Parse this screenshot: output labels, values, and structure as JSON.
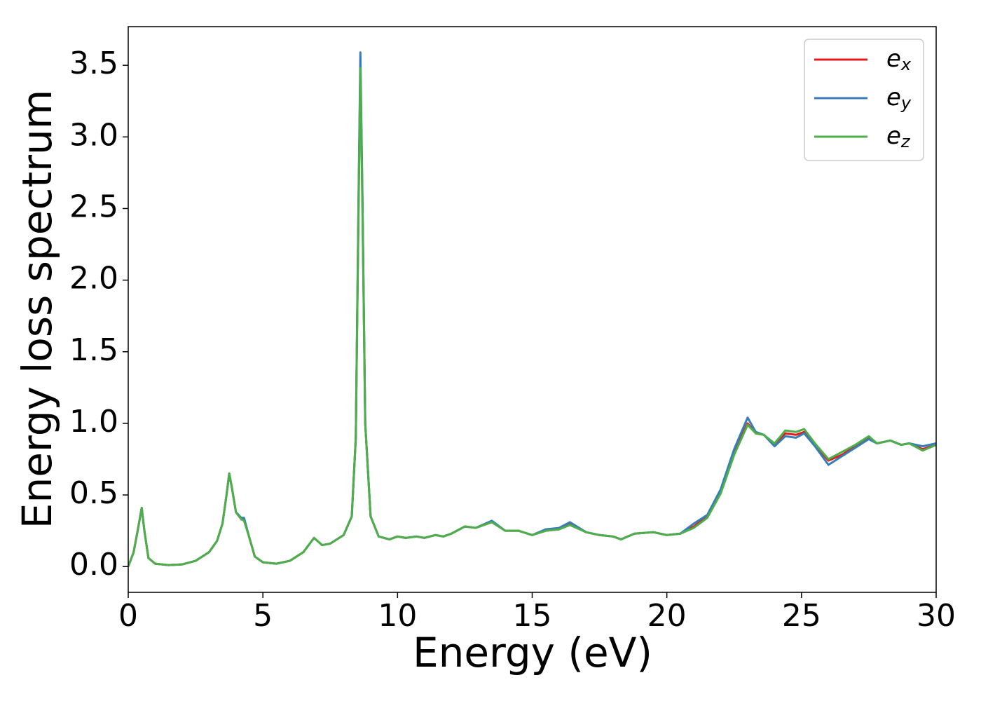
{
  "chart_data": {
    "type": "line",
    "xlabel": "Energy (eV)",
    "ylabel": "Energy loss spectrum",
    "x": [
      0,
      0.2,
      0.35,
      0.5,
      0.6,
      0.75,
      1.0,
      1.5,
      2.0,
      2.5,
      3.0,
      3.3,
      3.5,
      3.65,
      3.75,
      3.85,
      4.0,
      4.2,
      4.3,
      4.5,
      4.7,
      5.0,
      5.5,
      6.0,
      6.5,
      6.9,
      7.2,
      7.5,
      8.0,
      8.3,
      8.45,
      8.55,
      8.62,
      8.7,
      8.8,
      9.0,
      9.3,
      9.7,
      10.0,
      10.3,
      10.7,
      11.0,
      11.4,
      11.7,
      12.0,
      12.5,
      12.9,
      13.5,
      14.0,
      14.5,
      15.0,
      15.5,
      16.0,
      16.4,
      17.0,
      17.5,
      18.0,
      18.3,
      18.8,
      19.5,
      20.0,
      20.5,
      21.0,
      21.5,
      22.0,
      22.5,
      23.0,
      23.3,
      23.6,
      24.0,
      24.4,
      24.8,
      25.1,
      25.5,
      26.0,
      26.5,
      27.0,
      27.5,
      27.8,
      28.3,
      28.7,
      29.0,
      29.5,
      30.0
    ],
    "series": [
      {
        "name": "ex",
        "color": "#e41a1c",
        "values": [
          0.0,
          0.1,
          0.25,
          0.41,
          0.25,
          0.06,
          0.02,
          0.01,
          0.015,
          0.04,
          0.1,
          0.18,
          0.3,
          0.5,
          0.65,
          0.55,
          0.38,
          0.33,
          0.33,
          0.2,
          0.07,
          0.03,
          0.02,
          0.04,
          0.1,
          0.2,
          0.15,
          0.16,
          0.22,
          0.35,
          0.9,
          2.5,
          3.5,
          2.5,
          1.0,
          0.35,
          0.21,
          0.19,
          0.21,
          0.2,
          0.21,
          0.2,
          0.22,
          0.21,
          0.23,
          0.28,
          0.27,
          0.31,
          0.25,
          0.25,
          0.22,
          0.25,
          0.26,
          0.3,
          0.24,
          0.22,
          0.21,
          0.19,
          0.23,
          0.24,
          0.22,
          0.23,
          0.28,
          0.35,
          0.53,
          0.8,
          1.0,
          0.93,
          0.92,
          0.85,
          0.93,
          0.92,
          0.94,
          0.85,
          0.74,
          0.78,
          0.84,
          0.9,
          0.86,
          0.88,
          0.85,
          0.86,
          0.82,
          0.85
        ]
      },
      {
        "name": "ey",
        "color": "#377eb8",
        "values": [
          0.0,
          0.1,
          0.25,
          0.41,
          0.25,
          0.06,
          0.02,
          0.01,
          0.015,
          0.04,
          0.1,
          0.18,
          0.3,
          0.5,
          0.65,
          0.55,
          0.38,
          0.34,
          0.34,
          0.2,
          0.07,
          0.03,
          0.02,
          0.04,
          0.1,
          0.2,
          0.15,
          0.16,
          0.22,
          0.35,
          0.9,
          2.55,
          3.59,
          2.55,
          1.0,
          0.35,
          0.21,
          0.19,
          0.21,
          0.2,
          0.21,
          0.2,
          0.22,
          0.21,
          0.23,
          0.28,
          0.27,
          0.32,
          0.25,
          0.25,
          0.22,
          0.26,
          0.27,
          0.31,
          0.24,
          0.22,
          0.21,
          0.19,
          0.23,
          0.24,
          0.22,
          0.23,
          0.3,
          0.36,
          0.54,
          0.82,
          1.04,
          0.94,
          0.92,
          0.84,
          0.91,
          0.9,
          0.93,
          0.84,
          0.71,
          0.77,
          0.83,
          0.89,
          0.86,
          0.88,
          0.85,
          0.86,
          0.84,
          0.86
        ]
      },
      {
        "name": "ez",
        "color": "#4daf4a",
        "values": [
          0.0,
          0.1,
          0.25,
          0.41,
          0.25,
          0.06,
          0.02,
          0.01,
          0.015,
          0.04,
          0.1,
          0.18,
          0.3,
          0.5,
          0.65,
          0.55,
          0.38,
          0.33,
          0.32,
          0.2,
          0.07,
          0.03,
          0.02,
          0.04,
          0.1,
          0.2,
          0.15,
          0.16,
          0.22,
          0.35,
          0.9,
          2.45,
          3.48,
          2.45,
          1.0,
          0.35,
          0.21,
          0.19,
          0.21,
          0.2,
          0.21,
          0.2,
          0.22,
          0.21,
          0.23,
          0.28,
          0.27,
          0.31,
          0.25,
          0.25,
          0.22,
          0.25,
          0.26,
          0.29,
          0.24,
          0.22,
          0.21,
          0.19,
          0.23,
          0.24,
          0.22,
          0.23,
          0.27,
          0.34,
          0.51,
          0.78,
          0.99,
          0.93,
          0.92,
          0.86,
          0.95,
          0.94,
          0.96,
          0.86,
          0.75,
          0.8,
          0.85,
          0.91,
          0.86,
          0.88,
          0.85,
          0.86,
          0.81,
          0.85
        ]
      }
    ],
    "xlim": [
      0,
      30
    ],
    "xticks": [
      0,
      5,
      10,
      15,
      20,
      25,
      30
    ],
    "ylim": [
      -0.18,
      3.77
    ],
    "yticks": [
      {
        "value": 0,
        "label": "0.0"
      },
      {
        "value": 0.5,
        "label": "0.5"
      },
      {
        "value": 1,
        "label": "1.0"
      },
      {
        "value": 1.5,
        "label": "1.5"
      },
      {
        "value": 2,
        "label": "2.0"
      },
      {
        "value": 2.5,
        "label": "2.5"
      },
      {
        "value": 3,
        "label": "3.0"
      },
      {
        "value": 3.5,
        "label": "3.5"
      }
    ],
    "grid": false,
    "legend": "upper right"
  }
}
